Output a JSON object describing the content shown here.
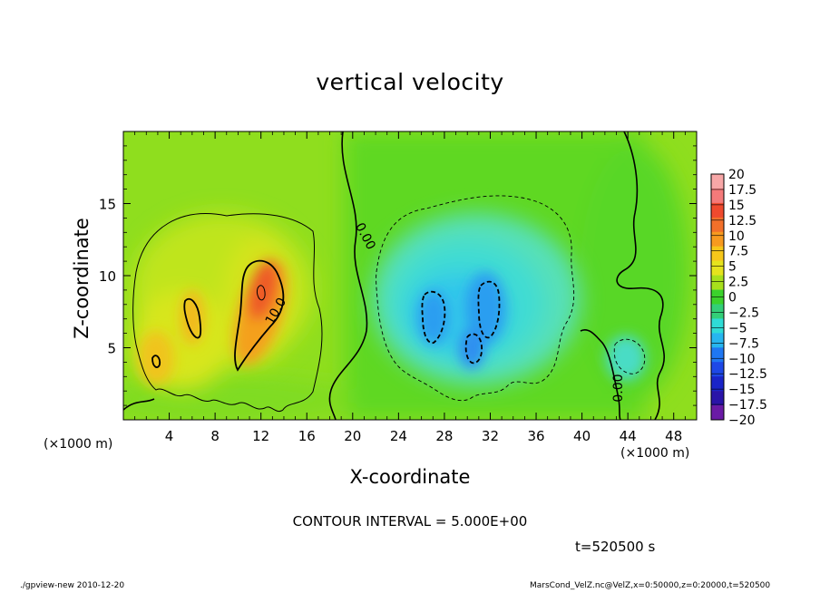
{
  "chart_data": {
    "type": "heatmap",
    "title": "vertical velocity",
    "xlabel": "X-coordinate",
    "ylabel": "Z-coordinate",
    "x_unit_left": "(×1000 m)",
    "x_unit_right": "(×1000 m)",
    "xlim": [
      0,
      50
    ],
    "ylim": [
      0,
      20
    ],
    "x_ticks": [
      4,
      8,
      12,
      16,
      20,
      24,
      28,
      32,
      36,
      40,
      44,
      48
    ],
    "y_ticks": [
      5,
      10,
      15
    ],
    "colorbar": {
      "levels": [
        "20",
        "17.5",
        "15",
        "12.5",
        "10",
        "7.5",
        "5",
        "2.5",
        "0",
        "−2.5",
        "−5",
        "−7.5",
        "−10",
        "−12.5",
        "−15",
        "−17.5",
        "−20"
      ],
      "colors": [
        "#f7a7a7",
        "#f47a7a",
        "#ef4a2e",
        "#f2702a",
        "#f79a1f",
        "#f6c71a",
        "#e5e31d",
        "#a8e01c",
        "#3bd22c",
        "#33cf78",
        "#2fdcd6",
        "#27b6ef",
        "#1f77f2",
        "#1e48e6",
        "#1a24c8",
        "#2a14a8",
        "#6a1aa5"
      ]
    },
    "contour_labels": [
      {
        "text": "0.00",
        "x": 20.8,
        "y": 12.6,
        "angle": 62
      },
      {
        "text": "10.0",
        "x": 13.6,
        "y": 7.4,
        "angle": -60
      },
      {
        "text": "0.00",
        "x": 43.5,
        "y": 2.2,
        "angle": -90
      }
    ],
    "contour_interval": "CONTOUR INTERVAL = 5.000E+00",
    "time": "t=520500 s",
    "footer_left": "./gpview-new   2010-12-20",
    "footer_right": "MarsCond_VelZ.nc@VelZ,x=0:50000,z=0:20000,t=520500"
  }
}
